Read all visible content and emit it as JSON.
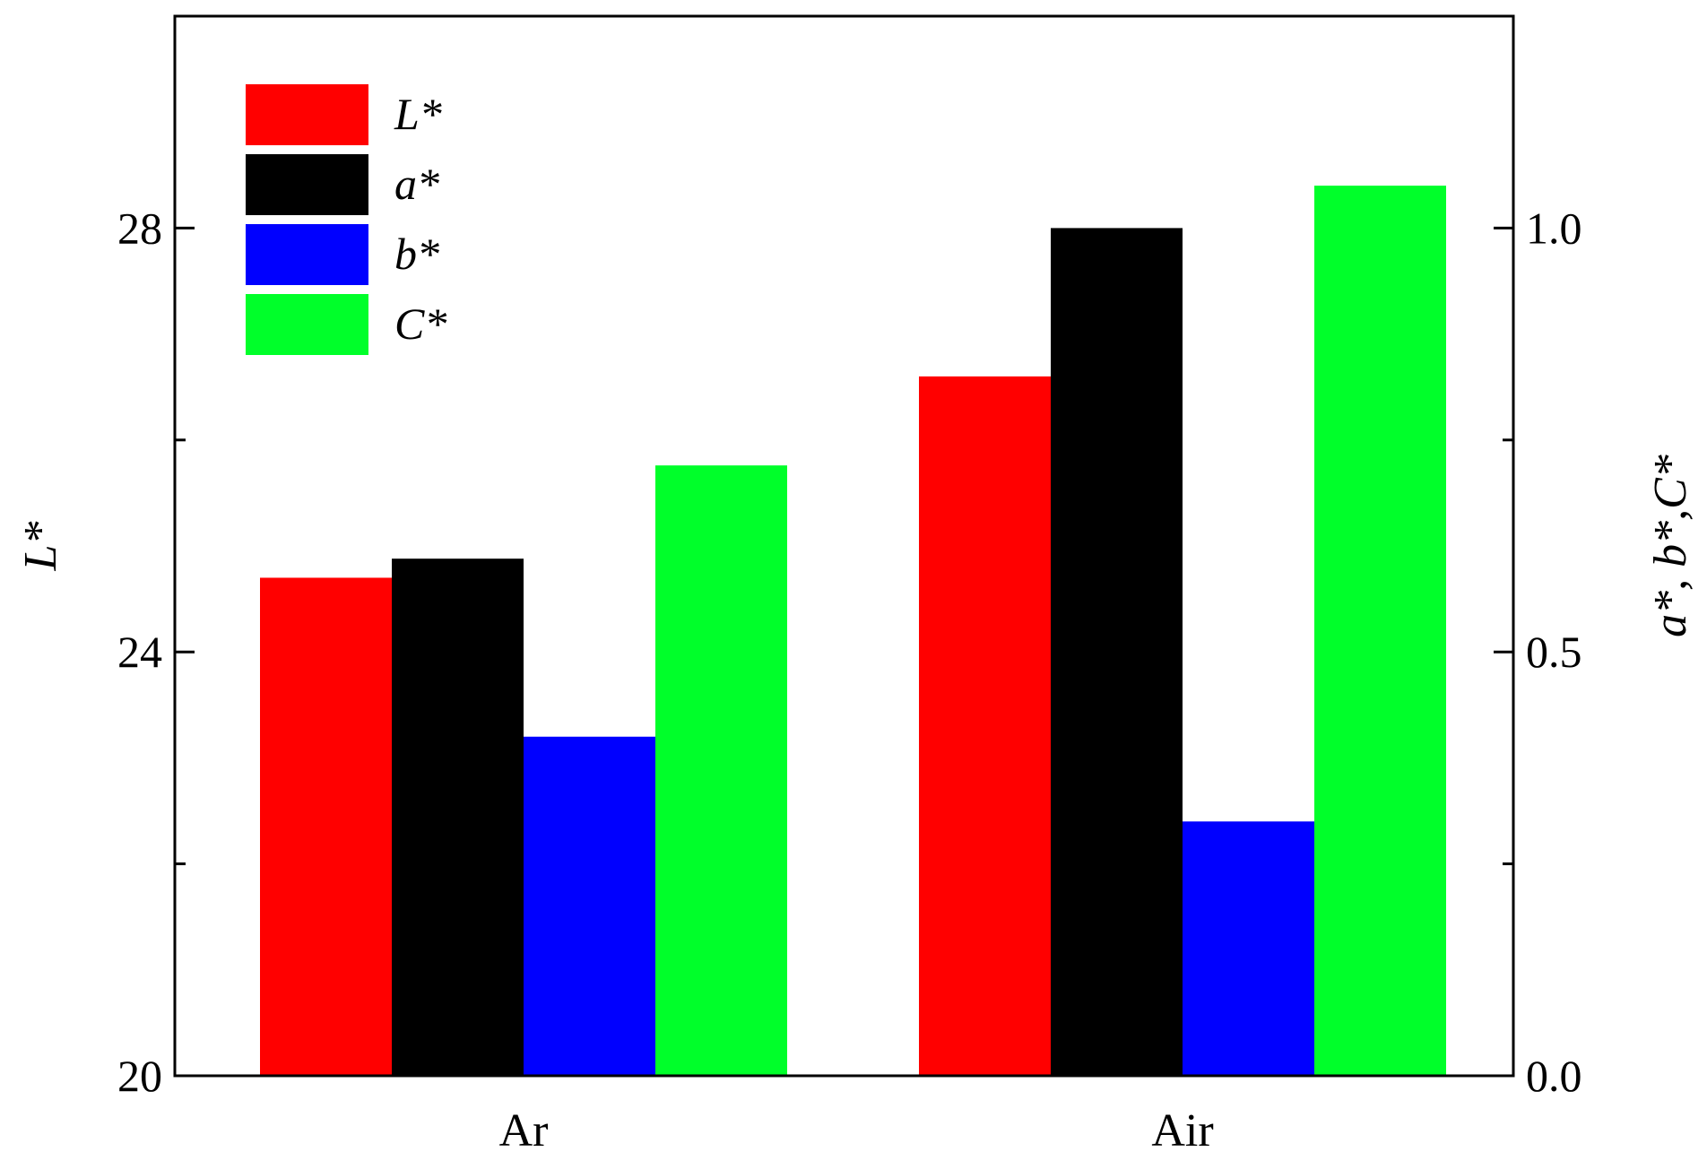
{
  "chart_data": {
    "type": "bar",
    "categories": [
      "Ar",
      "Air"
    ],
    "series": [
      {
        "name": "L*",
        "axis": "left",
        "color": "#ff0000",
        "values": [
          24.7,
          26.6
        ]
      },
      {
        "name": "a*",
        "axis": "right",
        "color": "#000000",
        "values": [
          0.61,
          1.0
        ]
      },
      {
        "name": "b*",
        "axis": "right",
        "color": "#0000ff",
        "values": [
          0.4,
          0.3
        ]
      },
      {
        "name": "C*",
        "axis": "right",
        "color": "#00ff2a",
        "values": [
          0.72,
          1.05
        ]
      }
    ],
    "title": "",
    "xlabel": "",
    "ylabel": "L*",
    "ylabel_right": "a*, b*,C*",
    "ylim": [
      20,
      30
    ],
    "ylim_right": [
      0.0,
      1.25
    ],
    "yticks": [
      "20",
      "24",
      "28"
    ],
    "yticks_right": [
      "0.0",
      "0.5",
      "1.0"
    ],
    "legend_position": "top-left",
    "grid": false
  }
}
